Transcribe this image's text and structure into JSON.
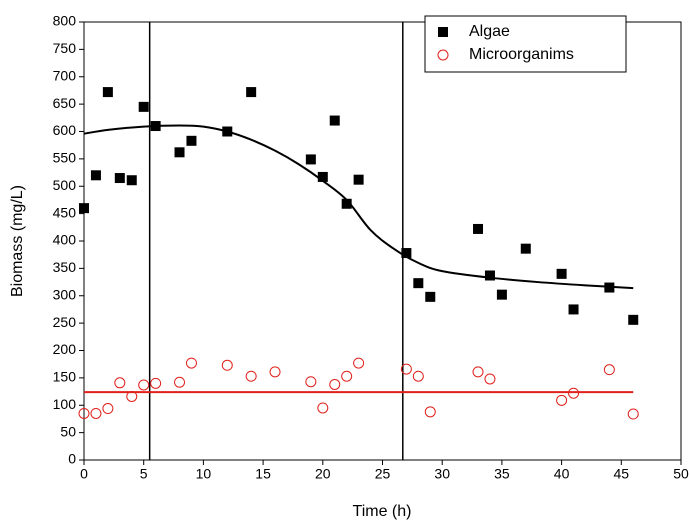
{
  "chart_data": {
    "type": "scatter",
    "x_label": "Time (h)",
    "y_label": "Biomass (mg/L)",
    "xlim": [
      0,
      50
    ],
    "xticks": [
      0,
      5,
      10,
      15,
      20,
      25,
      30,
      35,
      40,
      45,
      50
    ],
    "ylim": [
      0,
      800
    ],
    "yticks": [
      0,
      50,
      100,
      150,
      200,
      250,
      300,
      350,
      400,
      450,
      500,
      550,
      600,
      650,
      700,
      750,
      800
    ],
    "legend": "top-right",
    "series": [
      {
        "name": "Algae",
        "color": "#000000",
        "marker": "square",
        "x": [
          0,
          1,
          2,
          3,
          4,
          5,
          6,
          8,
          9,
          12,
          14,
          19,
          20,
          21,
          22,
          23,
          27,
          28,
          29,
          33,
          34,
          35,
          37,
          40,
          41,
          44,
          46
        ],
        "values": [
          460,
          520,
          672,
          515,
          511,
          645,
          610,
          562,
          583,
          600,
          672,
          549,
          517,
          620,
          468,
          512,
          378,
          323,
          298,
          422,
          337,
          302,
          386,
          340,
          275,
          315,
          256
        ]
      },
      {
        "name": "Microorganims",
        "color": "#e0201b",
        "marker": "open-circle",
        "x": [
          0,
          1,
          2,
          3,
          4,
          5,
          6,
          8,
          9,
          12,
          14,
          16,
          19,
          20,
          21,
          22,
          23,
          27,
          28,
          29,
          33,
          34,
          40,
          41,
          44,
          46
        ],
        "values": [
          85,
          85,
          94,
          141,
          116,
          137,
          140,
          142,
          177,
          173,
          153,
          161,
          143,
          95,
          138,
          153,
          177,
          166,
          153,
          88,
          161,
          148,
          109,
          122,
          165,
          84
        ]
      }
    ],
    "fit": {
      "color": "#000000",
      "x": [
        0,
        2,
        5,
        8,
        10,
        12,
        14,
        16,
        18,
        20,
        22,
        24,
        26,
        28,
        30,
        34,
        38,
        42,
        46
      ],
      "values": [
        596,
        603,
        609,
        611,
        609,
        600,
        585,
        565,
        540,
        510,
        475,
        420,
        385,
        360,
        345,
        333,
        325,
        319,
        314
      ]
    },
    "hline": {
      "value": 124,
      "x": [
        0,
        46
      ],
      "color": "#e0201b"
    },
    "vlines": [
      5.5,
      26.7
    ]
  }
}
